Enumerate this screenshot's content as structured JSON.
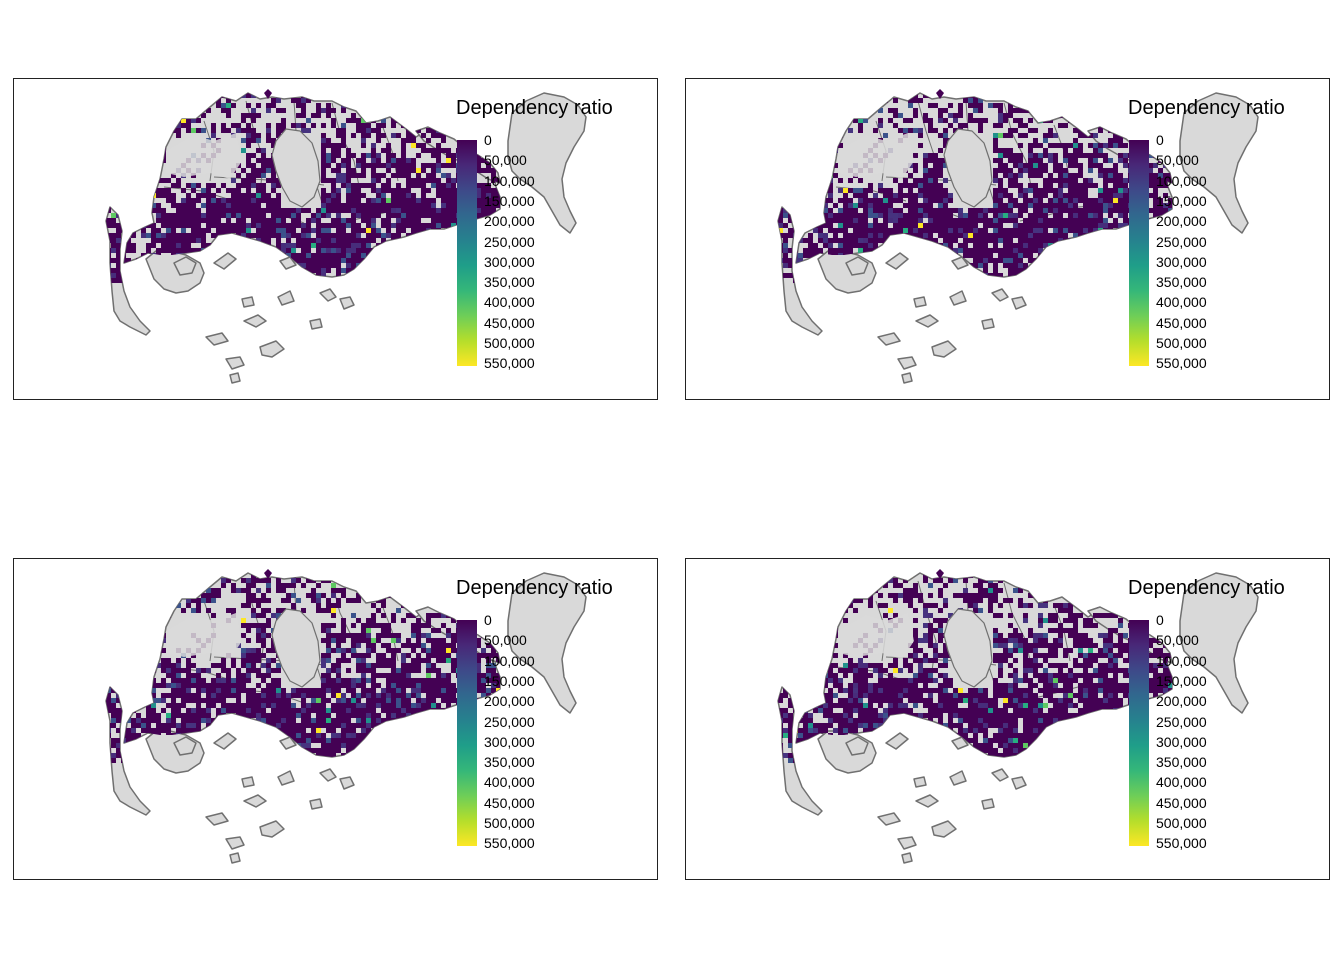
{
  "panels": [
    {
      "legend_title": "Dependency ratio"
    },
    {
      "legend_title": "Dependency ratio"
    },
    {
      "legend_title": "Dependency ratio"
    },
    {
      "legend_title": "Dependency ratio"
    }
  ],
  "legend": {
    "ticks": [
      "0",
      "50,000",
      "100,000",
      "150,000",
      "200,000",
      "250,000",
      "300,000",
      "350,000",
      "400,000",
      "450,000",
      "500,000",
      "550,000"
    ],
    "palette": [
      "#440154",
      "#482878",
      "#3e4989",
      "#31688e",
      "#26828e",
      "#1f9e89",
      "#35b779",
      "#6ece58",
      "#b5de2b",
      "#fde725"
    ]
  },
  "colors": {
    "land_fill": "#d9d9d9",
    "land_stroke": "#707070",
    "hex_primary": "#440154",
    "hex_secondary": "#472d7b"
  }
}
